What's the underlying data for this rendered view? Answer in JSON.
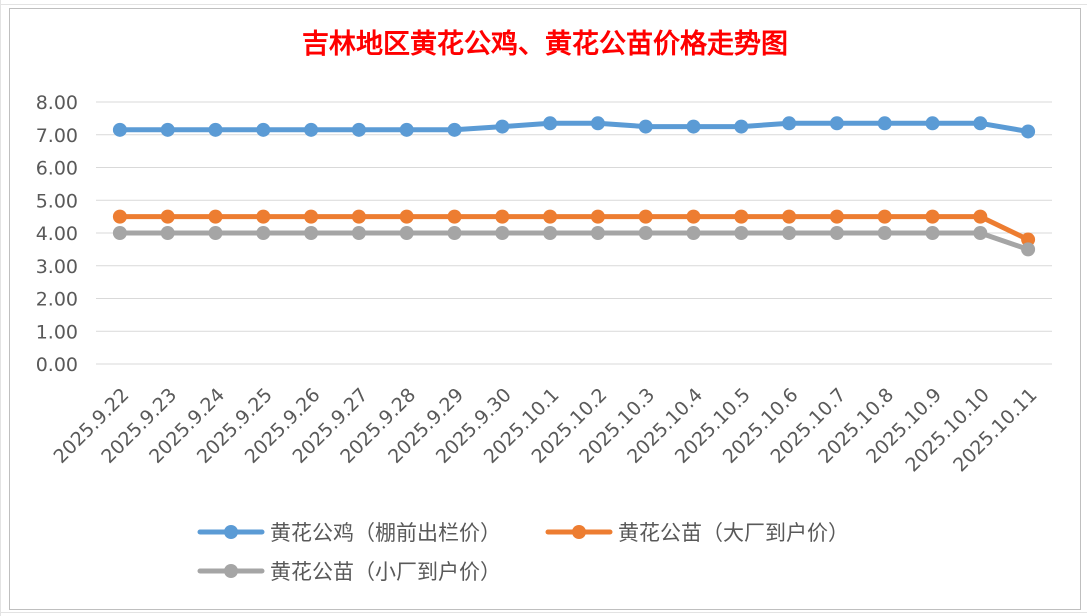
{
  "chart_data": {
    "type": "line",
    "title": "吉林地区黄花公鸡、黄花公苗价格走势图",
    "title_color": "#ff0000",
    "categories": [
      "2025.9.22",
      "2025.9.23",
      "2025.9.24",
      "2025.9.25",
      "2025.9.26",
      "2025.9.27",
      "2025.9.28",
      "2025.9.29",
      "2025.9.30",
      "2025.10.1",
      "2025.10.2",
      "2025.10.3",
      "2025.10.4",
      "2025.10.5",
      "2025.10.6",
      "2025.10.7",
      "2025.10.8",
      "2025.10.9",
      "2025.10.10",
      "2025.10.11"
    ],
    "series": [
      {
        "name": "黄花公鸡（棚前出栏价）",
        "color": "#5b9bd5",
        "values": [
          7.15,
          7.15,
          7.15,
          7.15,
          7.15,
          7.15,
          7.15,
          7.15,
          7.25,
          7.35,
          7.35,
          7.25,
          7.25,
          7.25,
          7.35,
          7.35,
          7.35,
          7.35,
          7.35,
          7.1
        ]
      },
      {
        "name": "黄花公苗（大厂到户价）",
        "color": "#ed7d31",
        "values": [
          4.5,
          4.5,
          4.5,
          4.5,
          4.5,
          4.5,
          4.5,
          4.5,
          4.5,
          4.5,
          4.5,
          4.5,
          4.5,
          4.5,
          4.5,
          4.5,
          4.5,
          4.5,
          4.5,
          3.8
        ]
      },
      {
        "name": "黄花公苗（小厂到户价）",
        "color": "#a5a5a5",
        "values": [
          4.0,
          4.0,
          4.0,
          4.0,
          4.0,
          4.0,
          4.0,
          4.0,
          4.0,
          4.0,
          4.0,
          4.0,
          4.0,
          4.0,
          4.0,
          4.0,
          4.0,
          4.0,
          4.0,
          3.5
        ]
      }
    ],
    "ylim": [
      0,
      8
    ],
    "yticks": [
      "0.00",
      "1.00",
      "2.00",
      "3.00",
      "4.00",
      "5.00",
      "6.00",
      "7.00",
      "8.00"
    ],
    "grid": true,
    "legend_position": "bottom"
  }
}
